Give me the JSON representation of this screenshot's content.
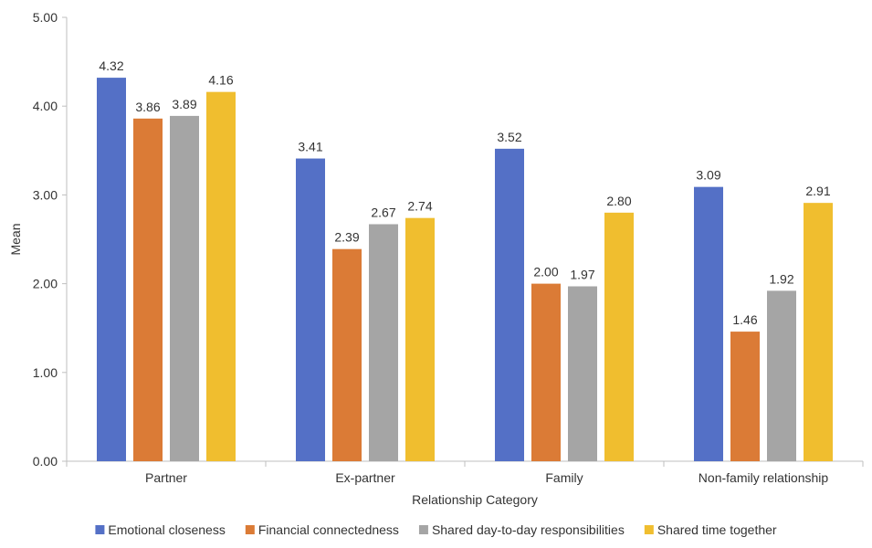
{
  "chart_data": {
    "type": "bar",
    "xlabel": "Relationship Category",
    "ylabel": "Mean",
    "ylim": [
      0,
      5
    ],
    "yticks": [
      "0.00",
      "1.00",
      "2.00",
      "3.00",
      "4.00",
      "5.00"
    ],
    "grid": false,
    "legend_position": "bottom",
    "categories": [
      "Partner",
      "Ex-partner",
      "Family",
      "Non-family relationship"
    ],
    "series": [
      {
        "name": "Emotional closeness",
        "color": "#5470C6",
        "values": [
          4.32,
          3.41,
          3.52,
          3.09
        ],
        "labels": [
          "4.32",
          "3.41",
          "3.52",
          "3.09"
        ]
      },
      {
        "name": "Financial connectedness",
        "color": "#DB7B36",
        "values": [
          3.86,
          2.39,
          2.0,
          1.46
        ],
        "labels": [
          "3.86",
          "2.39",
          "2.00",
          "1.46"
        ]
      },
      {
        "name": "Shared day-to-day responsibilities",
        "color": "#A5A5A5",
        "values": [
          3.89,
          2.67,
          1.97,
          1.92
        ],
        "labels": [
          "3.89",
          "2.67",
          "1.97",
          "1.92"
        ]
      },
      {
        "name": "Shared time together",
        "color": "#F0BE2F",
        "values": [
          4.16,
          2.74,
          2.8,
          2.91
        ],
        "labels": [
          "4.16",
          "2.74",
          "2.80",
          "2.91"
        ]
      }
    ]
  }
}
